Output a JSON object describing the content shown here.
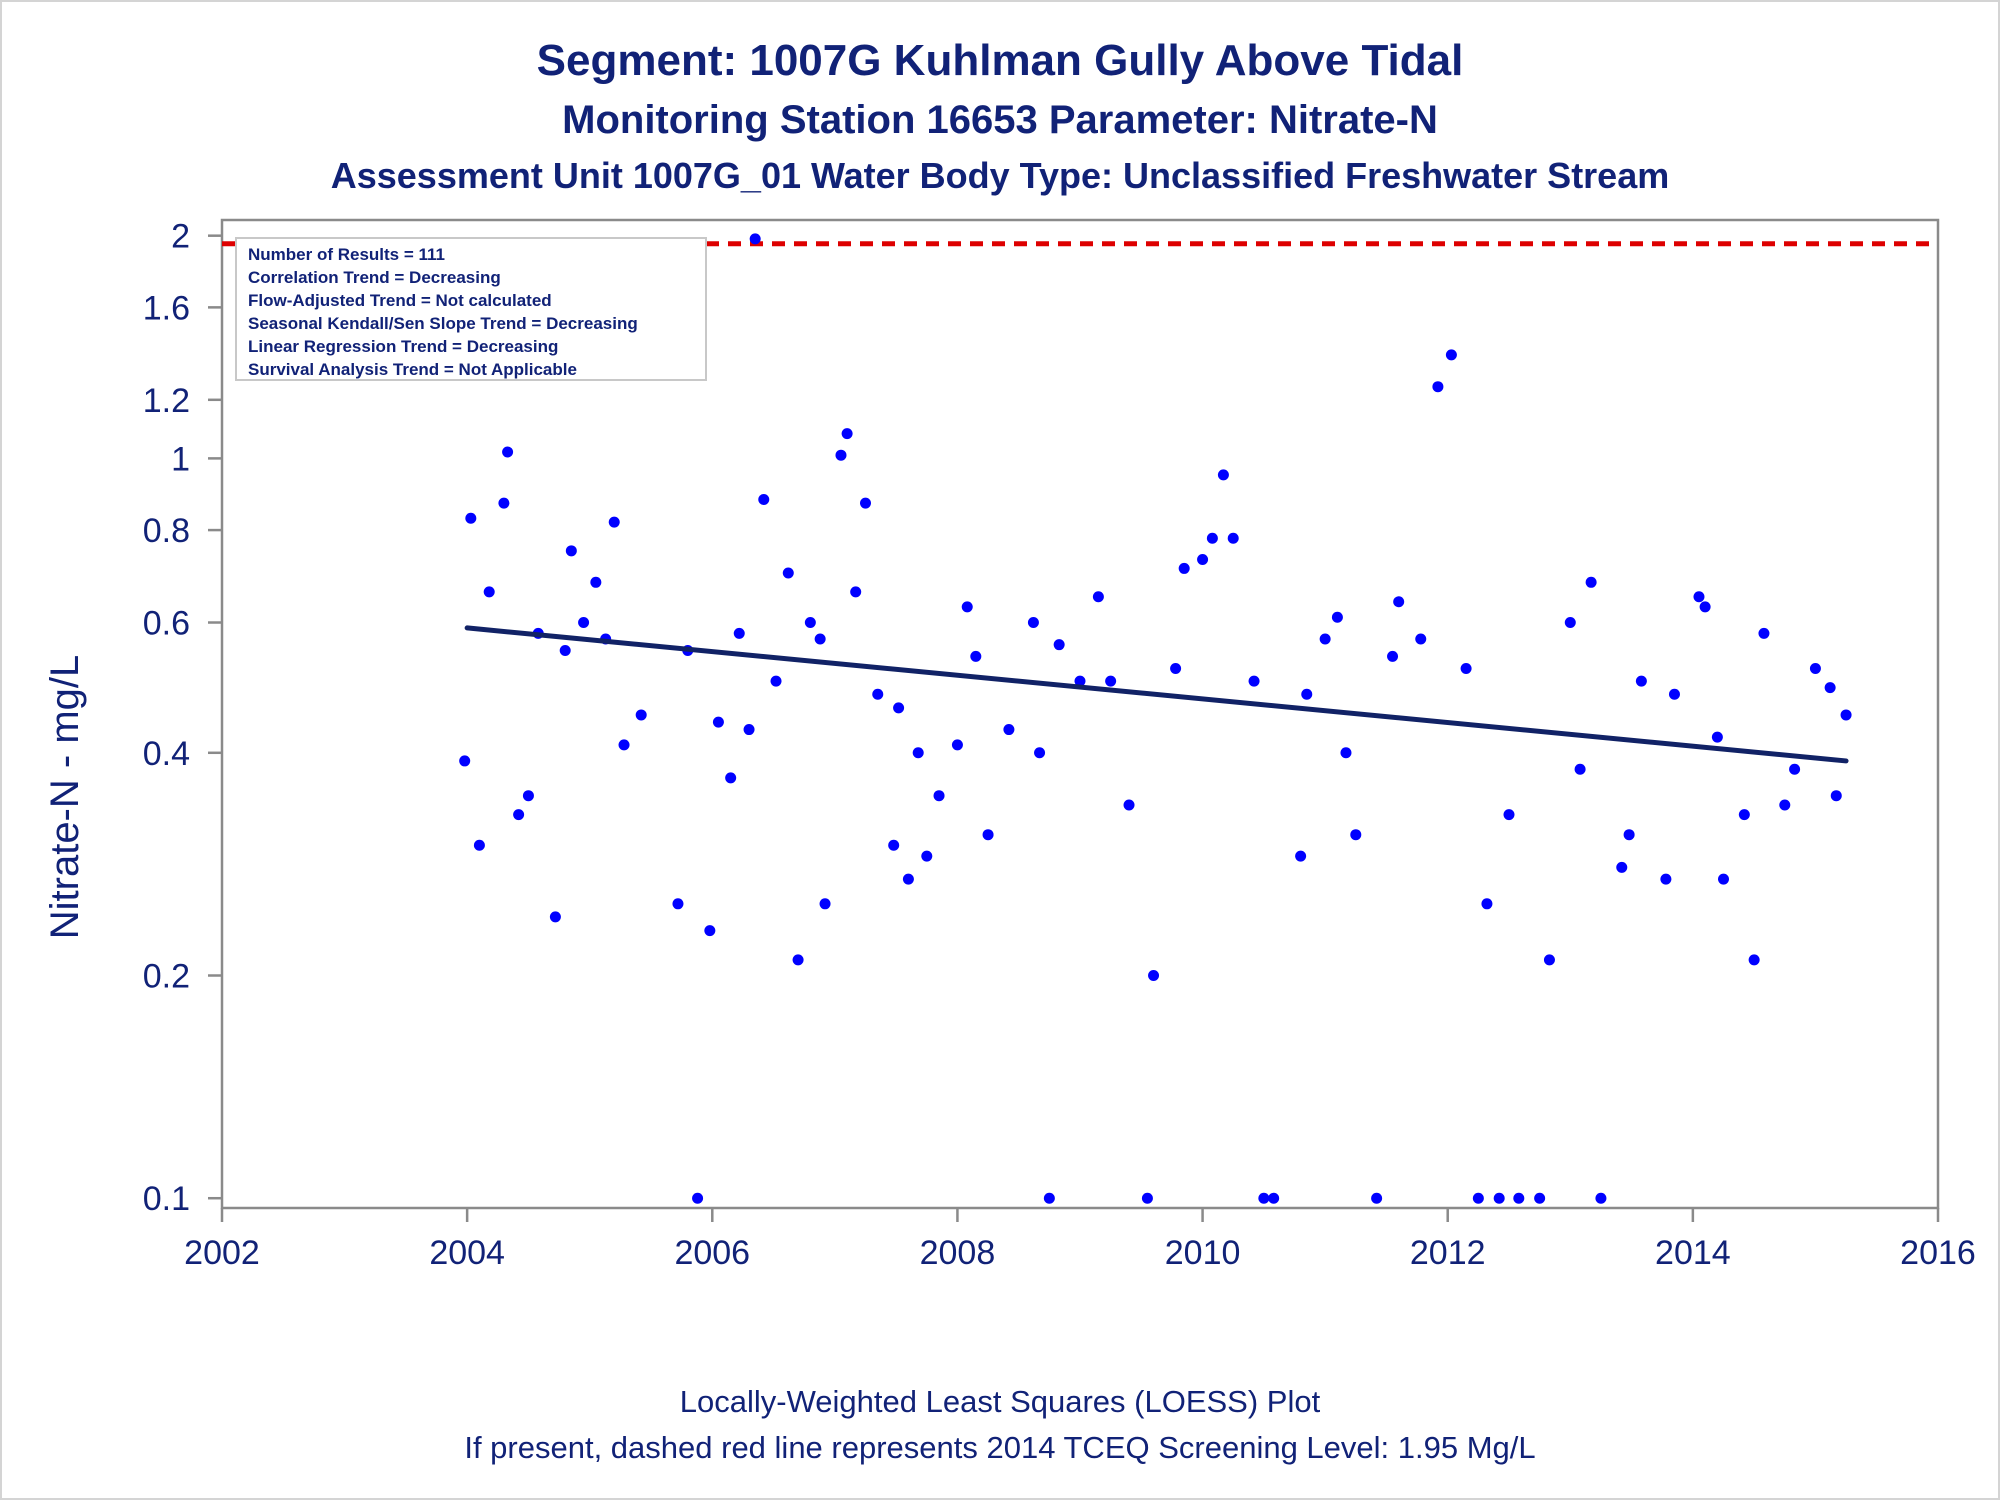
{
  "chart_data": {
    "type": "scatter",
    "title": "Segment: 1007G  Kuhlman Gully Above Tidal",
    "subtitle": "Monitoring Station 16653 Parameter: Nitrate-N",
    "subtitle2": "Assessment Unit 1007G_01   Water Body Type: Unclassified Freshwater Stream",
    "xlabel": "",
    "ylabel": "Nitrate-N - mg/L",
    "x_ticks": [
      2002,
      2004,
      2006,
      2008,
      2010,
      2012,
      2014,
      2016
    ],
    "y_ticks": [
      0.1,
      0.2,
      0.4,
      0.6,
      0.8,
      1,
      1.2,
      1.6,
      2
    ],
    "y_tick_labels": [
      "0.1",
      "0.2",
      "0.4",
      "0.6",
      "0.8",
      "1",
      "1.2",
      "1.6",
      "2"
    ],
    "xlim": [
      2002,
      2016
    ],
    "ylim": [
      0.097,
      2.1
    ],
    "y_scale": "log",
    "grid": false,
    "stats_box": {
      "placement": "top-left",
      "lines": [
        "Number of Results = 111",
        "Correlation Trend = Decreasing",
        "Flow-Adjusted Trend = Not calculated",
        "Seasonal Kendall/Sen Slope Trend = Decreasing",
        "Linear Regression Trend = Decreasing",
        "Survival Analysis Trend = Not Applicable"
      ]
    },
    "screening_level": {
      "value": 1.95,
      "color": "#dd0000",
      "style": "dashed"
    },
    "series": [
      {
        "marker": "circle",
        "color": "#0000ff",
        "points": [
          [
            2003.98,
            0.39
          ],
          [
            2004.03,
            0.83
          ],
          [
            2004.1,
            0.3
          ],
          [
            2004.18,
            0.66
          ],
          [
            2004.3,
            0.87
          ],
          [
            2004.33,
            1.02
          ],
          [
            2004.42,
            0.33
          ],
          [
            2004.5,
            0.35
          ],
          [
            2004.58,
            0.58
          ],
          [
            2004.72,
            0.24
          ],
          [
            2004.8,
            0.55
          ],
          [
            2004.85,
            0.75
          ],
          [
            2004.95,
            0.6
          ],
          [
            2005.05,
            0.68
          ],
          [
            2005.13,
            0.57
          ],
          [
            2005.2,
            0.82
          ],
          [
            2005.28,
            0.41
          ],
          [
            2005.42,
            0.45
          ],
          [
            2005.72,
            0.25
          ],
          [
            2005.8,
            0.55
          ],
          [
            2005.88,
            0.1
          ],
          [
            2005.98,
            0.23
          ],
          [
            2006.05,
            0.44
          ],
          [
            2006.15,
            0.37
          ],
          [
            2006.22,
            0.58
          ],
          [
            2006.3,
            0.43
          ],
          [
            2006.35,
            1.98
          ],
          [
            2006.42,
            0.88
          ],
          [
            2006.52,
            0.5
          ],
          [
            2006.62,
            0.7
          ],
          [
            2006.7,
            0.21
          ],
          [
            2006.8,
            0.6
          ],
          [
            2006.88,
            0.57
          ],
          [
            2006.92,
            0.25
          ],
          [
            2007.05,
            1.01
          ],
          [
            2007.1,
            1.08
          ],
          [
            2007.17,
            0.66
          ],
          [
            2007.25,
            0.87
          ],
          [
            2007.35,
            0.48
          ],
          [
            2007.48,
            0.3
          ],
          [
            2007.52,
            0.46
          ],
          [
            2007.6,
            0.27
          ],
          [
            2007.68,
            0.4
          ],
          [
            2007.75,
            0.29
          ],
          [
            2007.85,
            0.35
          ],
          [
            2008.0,
            0.41
          ],
          [
            2008.08,
            0.63
          ],
          [
            2008.15,
            0.54
          ],
          [
            2008.25,
            0.31
          ],
          [
            2008.42,
            0.43
          ],
          [
            2008.62,
            0.6
          ],
          [
            2008.67,
            0.4
          ],
          [
            2008.75,
            0.1
          ],
          [
            2008.83,
            0.56
          ],
          [
            2009.0,
            0.5
          ],
          [
            2009.15,
            0.65
          ],
          [
            2009.25,
            0.5
          ],
          [
            2009.4,
            0.34
          ],
          [
            2009.55,
            0.1
          ],
          [
            2009.6,
            0.2
          ],
          [
            2009.78,
            0.52
          ],
          [
            2009.85,
            0.71
          ],
          [
            2010.0,
            0.73
          ],
          [
            2010.08,
            0.78
          ],
          [
            2010.17,
            0.95
          ],
          [
            2010.25,
            0.78
          ],
          [
            2010.42,
            0.5
          ],
          [
            2010.5,
            0.1
          ],
          [
            2010.58,
            0.1
          ],
          [
            2010.8,
            0.29
          ],
          [
            2010.85,
            0.48
          ],
          [
            2011.0,
            0.57
          ],
          [
            2011.1,
            0.61
          ],
          [
            2011.17,
            0.4
          ],
          [
            2011.25,
            0.31
          ],
          [
            2011.42,
            0.1
          ],
          [
            2011.55,
            0.54
          ],
          [
            2011.6,
            0.64
          ],
          [
            2011.78,
            0.57
          ],
          [
            2011.92,
            1.25
          ],
          [
            2012.03,
            1.38
          ],
          [
            2012.15,
            0.52
          ],
          [
            2012.25,
            0.1
          ],
          [
            2012.32,
            0.25
          ],
          [
            2012.42,
            0.1
          ],
          [
            2012.5,
            0.33
          ],
          [
            2012.58,
            0.1
          ],
          [
            2012.75,
            0.1
          ],
          [
            2012.83,
            0.21
          ],
          [
            2013.0,
            0.6
          ],
          [
            2013.08,
            0.38
          ],
          [
            2013.17,
            0.68
          ],
          [
            2013.25,
            0.1
          ],
          [
            2013.42,
            0.28
          ],
          [
            2013.48,
            0.31
          ],
          [
            2013.58,
            0.5
          ],
          [
            2013.78,
            0.27
          ],
          [
            2013.85,
            0.48
          ],
          [
            2014.05,
            0.65
          ],
          [
            2014.1,
            0.63
          ],
          [
            2014.2,
            0.42
          ],
          [
            2014.25,
            0.27
          ],
          [
            2014.42,
            0.33
          ],
          [
            2014.5,
            0.21
          ],
          [
            2014.58,
            0.58
          ],
          [
            2014.75,
            0.34
          ],
          [
            2014.83,
            0.38
          ],
          [
            2015.0,
            0.52
          ],
          [
            2015.12,
            0.49
          ],
          [
            2015.17,
            0.35
          ],
          [
            2015.25,
            0.45
          ]
        ]
      }
    ],
    "trend_line": {
      "color": "#112266",
      "points": [
        [
          2004.0,
          0.59
        ],
        [
          2015.25,
          0.39
        ]
      ]
    },
    "footnotes": [
      "Locally-Weighted Least Squares (LOESS) Plot",
      "If present, dashed red line represents 2014 TCEQ Screening Level: 1.95 Mg/L"
    ]
  }
}
